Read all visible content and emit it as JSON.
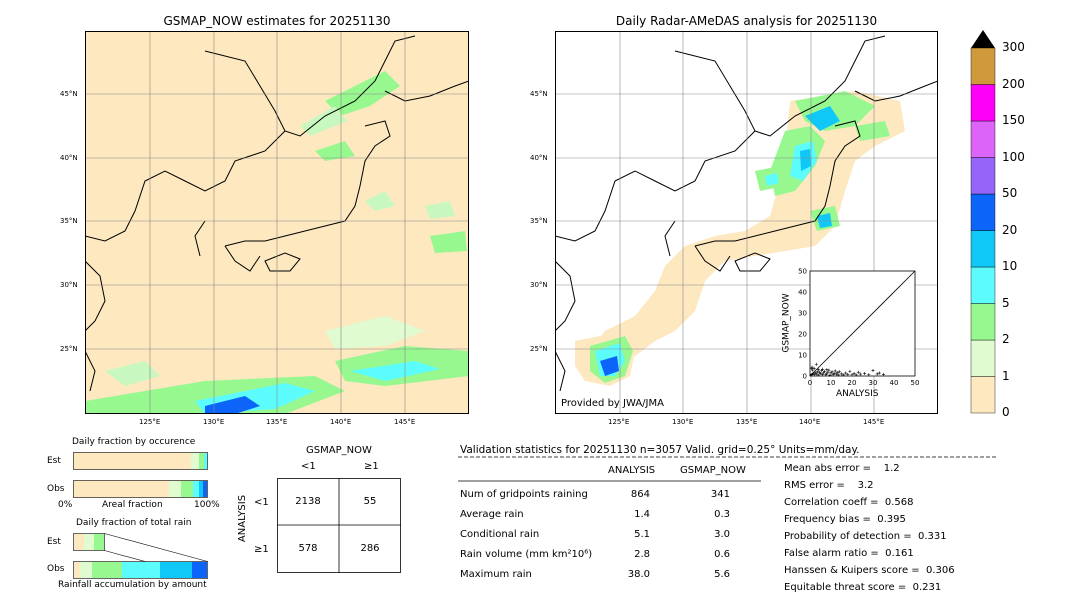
{
  "maps": {
    "left": {
      "title": "GSMAP_NOW estimates for 20251130",
      "lat_labels": [
        "45°N",
        "40°N",
        "35°N",
        "30°N",
        "25°N"
      ],
      "lon_labels": [
        "125°E",
        "130°E",
        "135°E",
        "140°E",
        "145°E"
      ]
    },
    "right": {
      "title": "Daily Radar-AMeDAS analysis for 20251130",
      "lat_labels": [
        "45°N",
        "40°N",
        "35°N",
        "30°N",
        "25°N"
      ],
      "lon_labels": [
        "125°E",
        "130°E",
        "135°E",
        "140°E",
        "145°E"
      ],
      "credit": "Provided by JWA/JMA"
    }
  },
  "colorbar": {
    "levels": [
      "0",
      "1",
      "2",
      "5",
      "10",
      "20",
      "50",
      "100",
      "150",
      "200",
      "300"
    ],
    "colors": [
      "#fde8c0",
      "#e0fbd0",
      "#98f890",
      "#5cfcfc",
      "#10c8f8",
      "#0c64f8",
      "#9664f8",
      "#dc64f8",
      "#fc00f8",
      "#d09a3c"
    ],
    "extend_color": "#000000"
  },
  "scatter": {
    "xlabel": "ANALYSIS",
    "ylabel": "GSMAP_NOW",
    "ticks": [
      "0",
      "10",
      "20",
      "30",
      "40",
      "50"
    ]
  },
  "fraction": {
    "title_occurrence": "Daily fraction by occurence",
    "title_rain": "Daily fraction of total rain",
    "row_est": "Est",
    "row_obs": "Obs",
    "axis_left": "0%",
    "axis_mid": "Areal fraction",
    "axis_right": "100%",
    "caption": "Rainfall accumulation by amount"
  },
  "contingency": {
    "header": "GSMAP_NOW",
    "col_lt": "<1",
    "col_ge": "≥1",
    "row_label": "ANALYSIS",
    "row_lt": "<1",
    "row_ge": "≥1",
    "v11": "2138",
    "v12": "55",
    "v21": "578",
    "v22": "286"
  },
  "validation": {
    "header": "Validation statistics for 20251130  n=3057 Valid. grid=0.25° Units=mm/day.",
    "col_analysis": "ANALYSIS",
    "col_gsmap": "GSMAP_NOW",
    "rows": [
      {
        "label": "Num of gridpoints raining",
        "analysis": "864",
        "gsmap": "341"
      },
      {
        "label": "Average rain",
        "analysis": "1.4",
        "gsmap": "0.3"
      },
      {
        "label": "Conditional rain",
        "analysis": "5.1",
        "gsmap": "3.0"
      },
      {
        "label": "Rain volume (mm km²10⁶)",
        "analysis": "2.8",
        "gsmap": "0.6"
      },
      {
        "label": "Maximum rain",
        "analysis": "38.0",
        "gsmap": "5.6"
      }
    ],
    "scores": [
      "Mean abs error =    1.2",
      "RMS error =    3.2",
      "Correlation coeff =  0.568",
      "Frequency bias =  0.395",
      "Probability of detection =  0.331",
      "False alarm ratio =  0.161",
      "Hanssen & Kuipers score =  0.306",
      "Equitable threat score =  0.231"
    ]
  },
  "chart_data": {
    "type": "scatter",
    "xlabel": "ANALYSIS",
    "ylabel": "GSMAP_NOW",
    "xlim": [
      0,
      50
    ],
    "ylim": [
      0,
      50
    ],
    "points": [
      [
        0.5,
        0.5
      ],
      [
        1,
        0.8
      ],
      [
        1.5,
        1.2
      ],
      [
        2,
        0.6
      ],
      [
        2.5,
        1.5
      ],
      [
        3,
        1.0
      ],
      [
        3.5,
        2.0
      ],
      [
        4,
        0.5
      ],
      [
        4.5,
        1.8
      ],
      [
        5,
        1.2
      ],
      [
        5.5,
        2.5
      ],
      [
        6,
        0.8
      ],
      [
        6.5,
        1.5
      ],
      [
        7,
        2.2
      ],
      [
        7.5,
        0.6
      ],
      [
        8,
        1.0
      ],
      [
        8.5,
        1.8
      ],
      [
        9,
        2.8
      ],
      [
        9.5,
        0.4
      ],
      [
        10,
        1.5
      ],
      [
        10.5,
        2.0
      ],
      [
        11,
        0.7
      ],
      [
        11.5,
        1.2
      ],
      [
        12,
        2.4
      ],
      [
        12.5,
        0.9
      ],
      [
        13,
        1.6
      ],
      [
        13.5,
        0.5
      ],
      [
        14,
        2.0
      ],
      [
        15,
        1.0
      ],
      [
        16,
        0.5
      ],
      [
        17,
        1.4
      ],
      [
        18,
        0.8
      ],
      [
        19,
        2.2
      ],
      [
        20,
        0.6
      ],
      [
        21,
        1.2
      ],
      [
        22,
        0.5
      ],
      [
        23,
        1.8
      ],
      [
        24,
        0.9
      ],
      [
        26,
        1.2
      ],
      [
        28,
        0.6
      ],
      [
        30,
        2.6
      ],
      [
        32,
        1.0
      ],
      [
        33,
        1.4
      ],
      [
        35,
        0.8
      ],
      [
        1,
        4.2
      ],
      [
        2,
        3.5
      ],
      [
        3,
        5.6
      ],
      [
        4,
        3.0
      ],
      [
        1.2,
        2.8
      ],
      [
        0.8,
        3.6
      ],
      [
        6,
        3.2
      ],
      [
        8,
        3.0
      ]
    ]
  }
}
